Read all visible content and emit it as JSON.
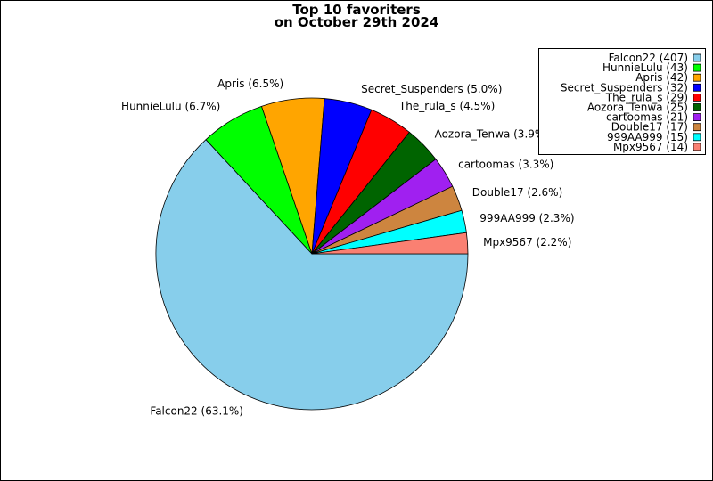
{
  "chart_data": {
    "type": "pie",
    "title_line1": "Top 10 favoriters",
    "title_line2": "on October 29th 2024",
    "start_angle_deg": 0,
    "direction": "clockwise",
    "legend_position": "top-right",
    "slices": [
      {
        "name": "Falcon22",
        "value": 407,
        "percent_label": "Falcon22 (63.1%)",
        "legend_label": "Falcon22 (407)",
        "color": "#87ceeb"
      },
      {
        "name": "HunnieLulu",
        "value": 43,
        "percent_label": "HunnieLulu (6.7%)",
        "legend_label": "HunnieLulu (43)",
        "color": "#00ff00"
      },
      {
        "name": "Apris",
        "value": 42,
        "percent_label": "Apris (6.5%)",
        "legend_label": "Apris (42)",
        "color": "#ffa500"
      },
      {
        "name": "Secret_Suspenders",
        "value": 32,
        "percent_label": "Secret_Suspenders (5.0%)",
        "legend_label": "Secret_Suspenders (32)",
        "color": "#0000ff"
      },
      {
        "name": "The_rula_s",
        "value": 29,
        "percent_label": "The_rula_s (4.5%)",
        "legend_label": "The_rula_s (29)",
        "color": "#ff0000"
      },
      {
        "name": "Aozora_Tenwa",
        "value": 25,
        "percent_label": "Aozora_Tenwa (3.9%)",
        "legend_label": "Aozora_Tenwa (25)",
        "color": "#006400"
      },
      {
        "name": "cartoomas",
        "value": 21,
        "percent_label": "cartoomas (3.3%)",
        "legend_label": "cartoomas (21)",
        "color": "#a020f0"
      },
      {
        "name": "Double17",
        "value": 17,
        "percent_label": "Double17 (2.6%)",
        "legend_label": "Double17 (17)",
        "color": "#cd853f"
      },
      {
        "name": "999AA999",
        "value": 15,
        "percent_label": "999AA999 (2.3%)",
        "legend_label": "999AA999 (15)",
        "color": "#00ffff"
      },
      {
        "name": "Mpx9567",
        "value": 14,
        "percent_label": "Mpx9567 (2.2%)",
        "legend_label": "Mpx9567 (14)",
        "color": "#fa8072"
      }
    ]
  }
}
